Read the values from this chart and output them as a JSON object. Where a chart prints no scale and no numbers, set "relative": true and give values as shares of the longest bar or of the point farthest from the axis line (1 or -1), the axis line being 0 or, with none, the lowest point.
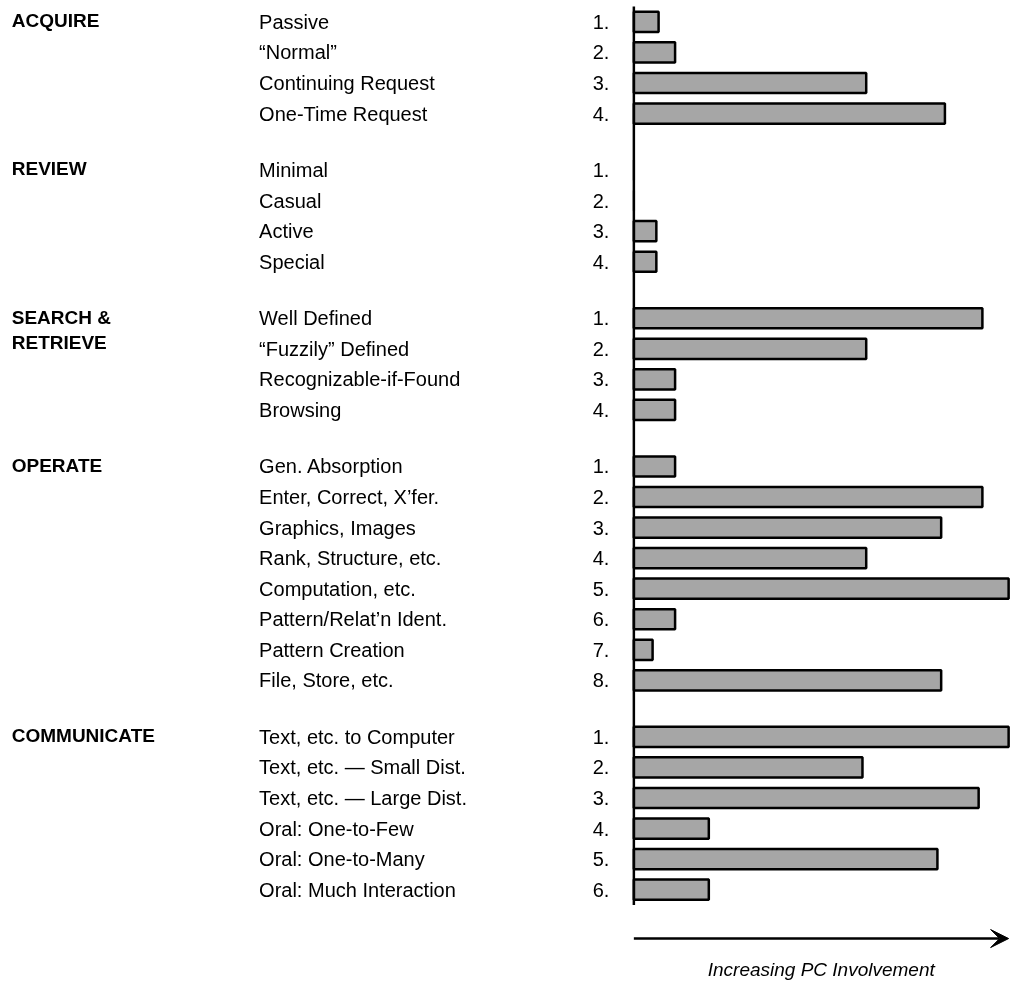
{
  "chart_data": {
    "type": "bar",
    "orientation": "horizontal",
    "relative": true,
    "color": "#a6a6a6",
    "categories": [
      "Passive",
      "“Normal”",
      "Continuing Request",
      "One-Time Request",
      "Minimal",
      "Casual",
      "Active",
      "Special",
      "Well Defined",
      "“Fuzzily” Defined",
      "Recognizable-if-Found",
      "Browsing",
      "Gen. Absorption",
      "Enter, Correct, X’fer.",
      "Graphics, Images",
      "Rank, Structure, etc.",
      "Computation, etc.",
      "Pattern/Relat’n Ident.",
      "Pattern Creation",
      "File, Store, etc.",
      "Text, etc. to Computer",
      "Text, etc. — Small Dist.",
      "Text, etc. — Large Dist.",
      "Oral: One-to-Few",
      "Oral: One-to-Many",
      "Oral: Much Interaction"
    ],
    "values": [
      0.066,
      0.11,
      0.62,
      0.83,
      0,
      0,
      0.06,
      0.06,
      0.93,
      0.62,
      0.11,
      0.11,
      0.11,
      0.93,
      0.82,
      0.62,
      1.0,
      0.11,
      0.05,
      0.82,
      1.0,
      0.61,
      0.92,
      0.2,
      0.81,
      0.2
    ],
    "xlabel": "Increasing PC Involvement",
    "annotations": [
      "1.",
      "2.",
      "3.",
      "4.",
      "1.",
      "2.",
      "3.",
      "4.",
      "1.",
      "2.",
      "3.",
      "4.",
      "1.",
      "2.",
      "3.",
      "4.",
      "5.",
      "6.",
      "7.",
      "8.",
      "1.",
      "2.",
      "3.",
      "4.",
      "5.",
      "6.",
      "ACQUIRE",
      "REVIEW",
      "SEARCH &\nRETRIEVE",
      "OPERATE",
      "COMMUNICATE"
    ]
  }
}
